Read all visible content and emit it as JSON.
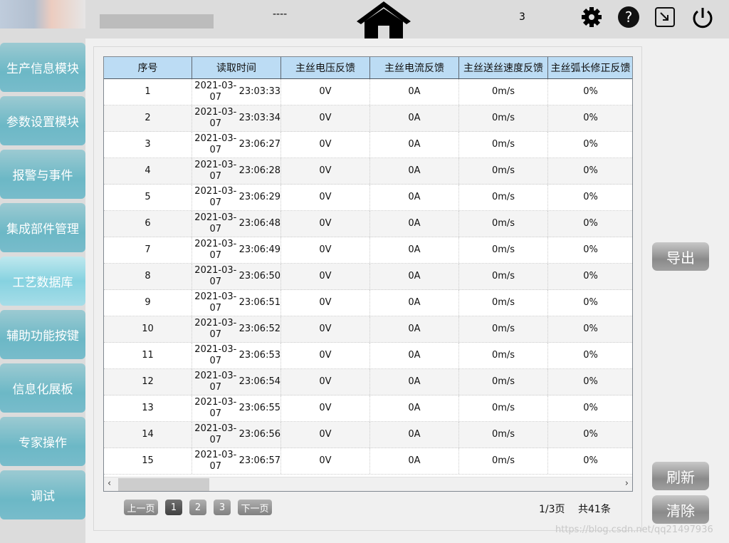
{
  "header": {
    "status_text": "----",
    "count": "3",
    "icons": [
      "home-icon",
      "gear-icon",
      "help-icon",
      "minimize-icon",
      "power-icon"
    ]
  },
  "sidebar": {
    "items": [
      {
        "label": "生产信息模块"
      },
      {
        "label": "参数设置模块"
      },
      {
        "label": "报警与事件"
      },
      {
        "label": "集成部件管理"
      },
      {
        "label": "工艺数据库",
        "active": true
      },
      {
        "label": "辅助功能按键"
      },
      {
        "label": "信息化展板"
      },
      {
        "label": "专家操作"
      },
      {
        "label": "调试"
      }
    ]
  },
  "table": {
    "columns": [
      "序号",
      "读取时间",
      "主丝电压反馈",
      "主丝电流反馈",
      "主丝送丝速度反馈",
      "主丝弧长修正反馈"
    ],
    "rows": [
      [
        "1",
        "2021-03-07",
        "23:03:33",
        "0V",
        "0A",
        "0m/s",
        "0%"
      ],
      [
        "2",
        "2021-03-07",
        "23:03:34",
        "0V",
        "0A",
        "0m/s",
        "0%"
      ],
      [
        "3",
        "2021-03-07",
        "23:06:27",
        "0V",
        "0A",
        "0m/s",
        "0%"
      ],
      [
        "4",
        "2021-03-07",
        "23:06:28",
        "0V",
        "0A",
        "0m/s",
        "0%"
      ],
      [
        "5",
        "2021-03-07",
        "23:06:29",
        "0V",
        "0A",
        "0m/s",
        "0%"
      ],
      [
        "6",
        "2021-03-07",
        "23:06:48",
        "0V",
        "0A",
        "0m/s",
        "0%"
      ],
      [
        "7",
        "2021-03-07",
        "23:06:49",
        "0V",
        "0A",
        "0m/s",
        "0%"
      ],
      [
        "8",
        "2021-03-07",
        "23:06:50",
        "0V",
        "0A",
        "0m/s",
        "0%"
      ],
      [
        "9",
        "2021-03-07",
        "23:06:51",
        "0V",
        "0A",
        "0m/s",
        "0%"
      ],
      [
        "10",
        "2021-03-07",
        "23:06:52",
        "0V",
        "0A",
        "0m/s",
        "0%"
      ],
      [
        "11",
        "2021-03-07",
        "23:06:53",
        "0V",
        "0A",
        "0m/s",
        "0%"
      ],
      [
        "12",
        "2021-03-07",
        "23:06:54",
        "0V",
        "0A",
        "0m/s",
        "0%"
      ],
      [
        "13",
        "2021-03-07",
        "23:06:55",
        "0V",
        "0A",
        "0m/s",
        "0%"
      ],
      [
        "14",
        "2021-03-07",
        "23:06:56",
        "0V",
        "0A",
        "0m/s",
        "0%"
      ],
      [
        "15",
        "2021-03-07",
        "23:06:57",
        "0V",
        "0A",
        "0m/s",
        "0%"
      ]
    ]
  },
  "pagination": {
    "prev": "上一页",
    "pages": [
      "1",
      "2",
      "3"
    ],
    "current": "1",
    "next": "下一页",
    "page_info": "1/3页",
    "total": "共41条"
  },
  "actions": {
    "export": "导出",
    "refresh": "刷新",
    "clear": "清除"
  },
  "watermark": "https://blog.csdn.net/qq21497936"
}
